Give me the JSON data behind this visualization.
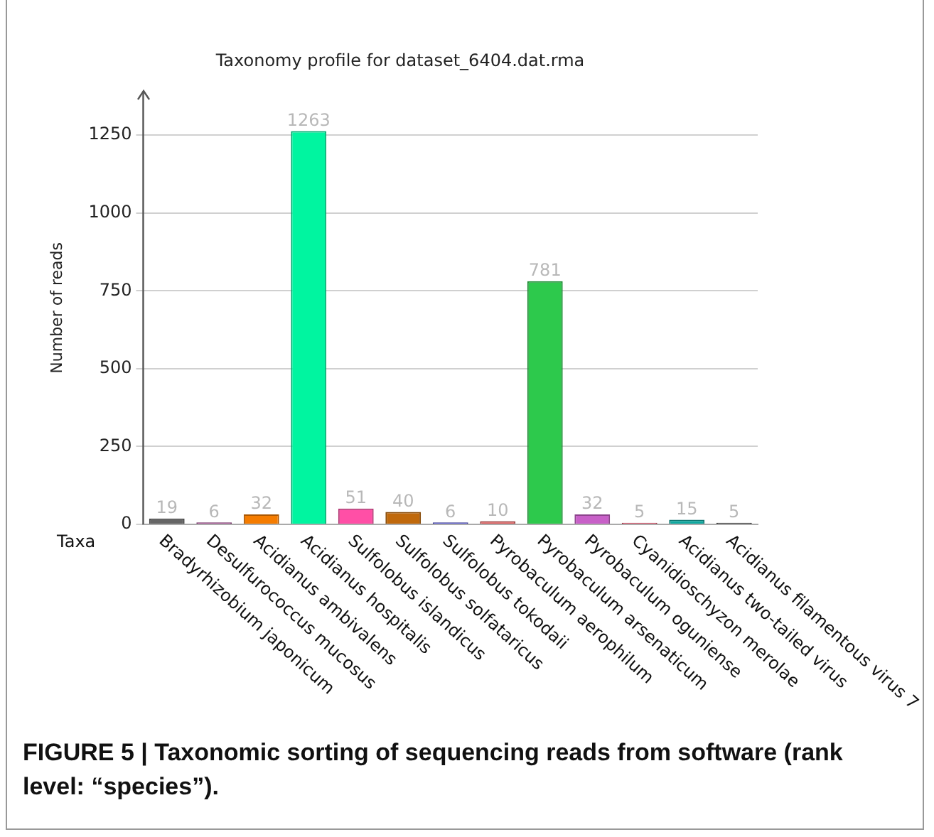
{
  "chart_data": {
    "type": "bar",
    "title": "Taxonomy profile for dataset_6404.dat.rma",
    "xlabel": "Taxa",
    "ylabel": "Number of reads",
    "categories": [
      "Bradyrhizobium japonicum",
      "Desulfurococcus mucosus",
      "Acidianus ambivalens",
      "Acidianus hospitalis",
      "Sulfolobus islandicus",
      "Sulfolobus solfataricus",
      "Sulfolobus tokodaii",
      "Pyrobaculum aerophilum",
      "Pyrobaculum arsenaticum",
      "Pyrobaculum oguniense",
      "Cyanidioschyzon merolae",
      "Acidianus two-tailed virus",
      "Acidianus filamentous virus 7"
    ],
    "values": [
      19,
      6,
      32,
      1263,
      51,
      40,
      6,
      10,
      781,
      32,
      5,
      15,
      5
    ],
    "colors": [
      "#666666",
      "#a0408c",
      "#f57c00",
      "#00f5a0",
      "#ff4fa6",
      "#c0690c",
      "#4a4ad0",
      "#e06060",
      "#2dc94c",
      "#c860c8",
      "#e03050",
      "#10a8a0",
      "#202020"
    ],
    "ylim": [
      0,
      1390
    ],
    "yticks": [
      0,
      250,
      500,
      750,
      1000,
      1250
    ],
    "grid": "y",
    "data_labels": true,
    "legend": false,
    "annotations": [
      "FIGURE 5 | Taxonomic sorting of sequencing reads from software (rank level: “species”)."
    ]
  }
}
